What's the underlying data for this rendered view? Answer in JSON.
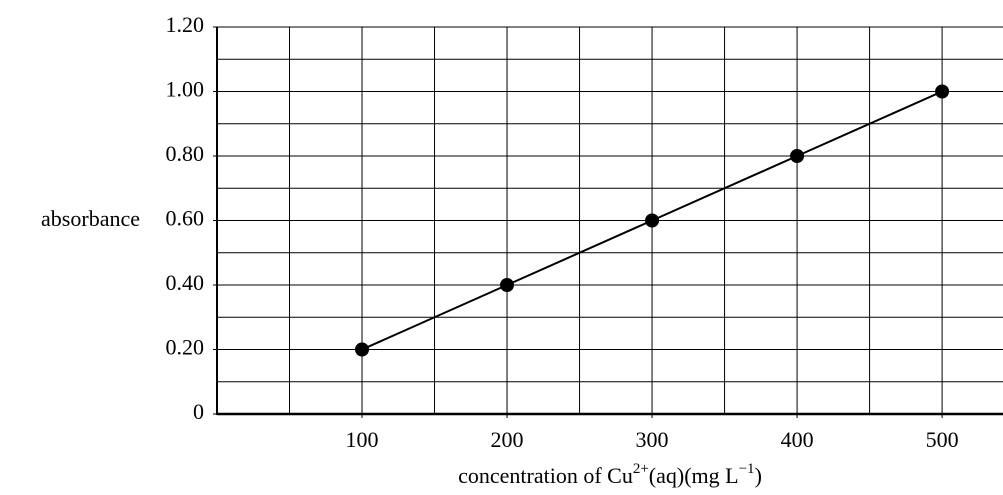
{
  "chart_data": {
    "type": "line",
    "x_label_parts": [
      "concentration of Cu",
      "2+",
      "(aq)(mg L",
      "−1",
      ")"
    ],
    "y_label": "absorbance",
    "x": [
      100,
      200,
      300,
      400,
      500
    ],
    "series": [
      {
        "name": "absorbance",
        "color": "#000000",
        "values": [
          0.2,
          0.4,
          0.6,
          0.8,
          1.0
        ]
      }
    ],
    "xlim": [
      0,
      542
    ],
    "ylim": [
      0,
      1.2
    ],
    "xticks": [
      100,
      200,
      300,
      400,
      500
    ],
    "yticks": [
      0,
      {
        "value": 0.2,
        "label": "0.20"
      },
      {
        "value": 0.4,
        "label": "0.40"
      },
      {
        "value": 0.6,
        "label": "0.60"
      },
      {
        "value": 0.8,
        "label": "0.80"
      },
      {
        "value": 1.0,
        "label": "1.00"
      },
      {
        "value": 1.2,
        "label": "1.20"
      }
    ],
    "x_gridlines": [
      50,
      100,
      150,
      200,
      250,
      300,
      350,
      400,
      450,
      500
    ],
    "y_gridlines": [
      0.1,
      0.2,
      0.3,
      0.4,
      0.5,
      0.6,
      0.7,
      0.8,
      0.9,
      1.0,
      1.1,
      1.2
    ],
    "grid": true,
    "markers": true
  }
}
